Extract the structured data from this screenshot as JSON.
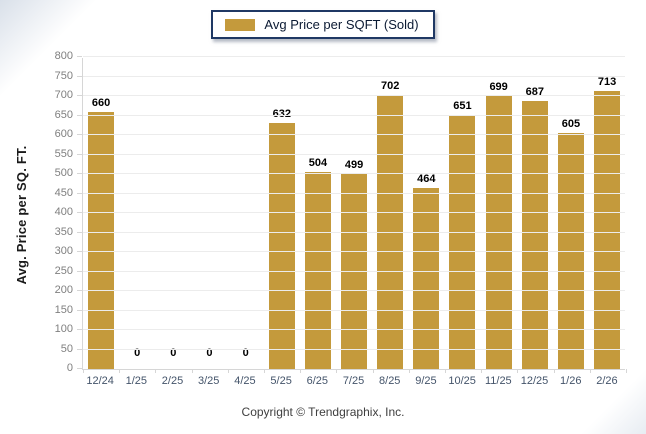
{
  "legend": {
    "label": "Avg Price per SQFT (Sold)"
  },
  "colors": {
    "bar": "#C49A3C",
    "legend_border": "#1F3864",
    "gridline": "#ececec",
    "axis_line": "#d6d6d6",
    "y_tick_text": "#7f7f7f",
    "x_tick_text": "#44546A",
    "value_label": "#000000"
  },
  "chart_data": {
    "type": "bar",
    "categories": [
      "12/24",
      "1/25",
      "2/25",
      "3/25",
      "4/25",
      "5/25",
      "6/25",
      "7/25",
      "8/25",
      "9/25",
      "10/25",
      "11/25",
      "12/25",
      "1/26",
      "2/26"
    ],
    "values": [
      660,
      0,
      0,
      0,
      0,
      632,
      504,
      499,
      702,
      464,
      651,
      699,
      687,
      605,
      713
    ],
    "title": "",
    "xlabel": "",
    "ylabel": "Avg. Price per SQ. FT.",
    "ylim": [
      0,
      800
    ],
    "ytick_step": 50,
    "grid": "horizontal",
    "legend_entries": [
      "Avg Price per SQFT (Sold)"
    ],
    "legend_position": "top",
    "value_labels_shown": true
  },
  "footer": {
    "copyright": "Copyright © Trendgraphix, Inc."
  }
}
